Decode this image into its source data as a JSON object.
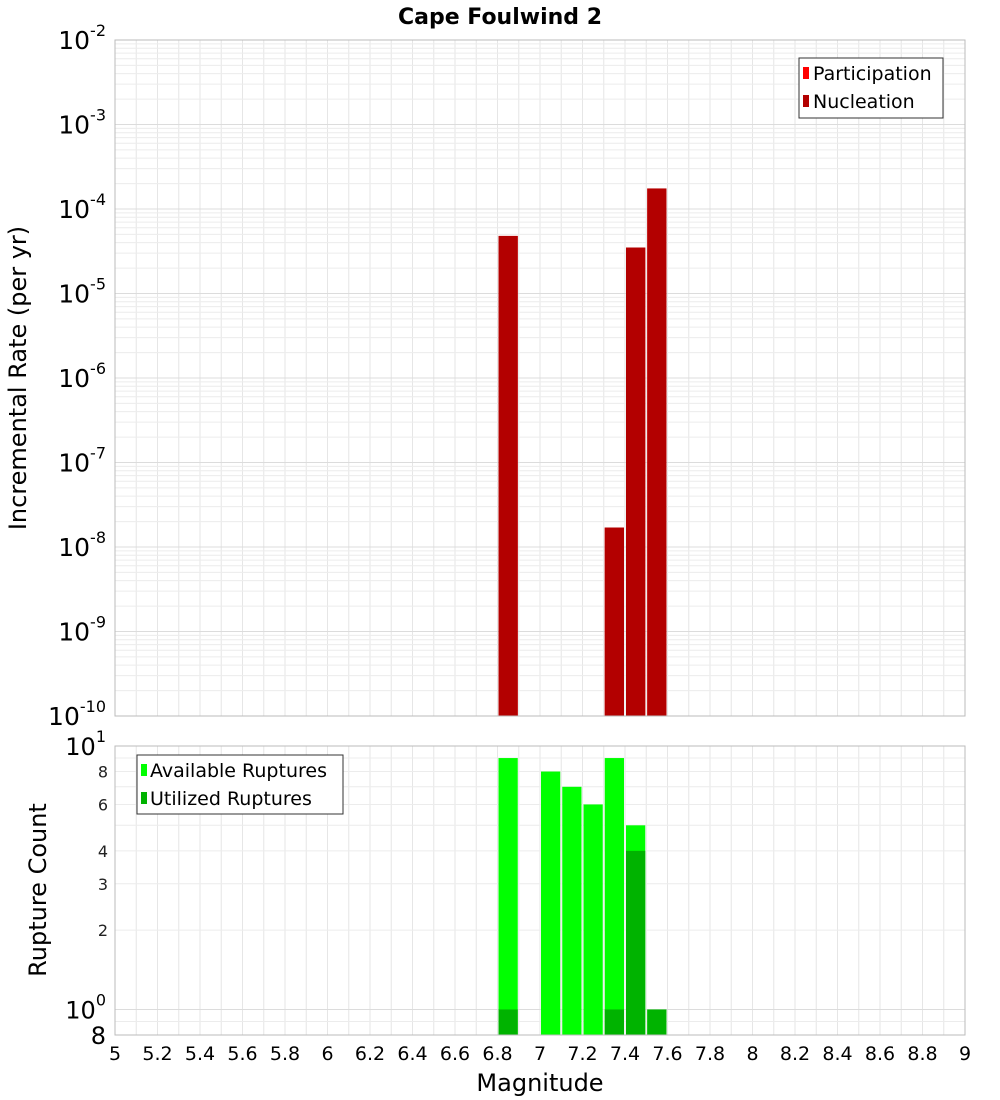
{
  "chart_data": {
    "title": "Cape Foulwind 2",
    "xlabel": "Magnitude",
    "xlim": [
      5,
      9
    ],
    "x_ticks": [
      "5",
      "5.2",
      "5.4",
      "5.6",
      "5.8",
      "6",
      "6.2",
      "6.4",
      "6.6",
      "6.8",
      "7",
      "7.2",
      "7.4",
      "7.6",
      "7.8",
      "8",
      "8.2",
      "8.4",
      "8.6",
      "8.8",
      "9"
    ],
    "bin_width": 0.1,
    "colors": {
      "participation": "#ff0000",
      "nucleation": "#b30000",
      "available": "#00ff00",
      "utilized": "#00b300",
      "grid": "#e6e6e6",
      "frame": "#bbbbbb"
    },
    "panels": [
      {
        "id": "rate",
        "type": "bar",
        "scale": "log",
        "ylabel": "Incremental Rate (per yr)",
        "ylim": [
          1e-10,
          0.01
        ],
        "y_ticks": [
          {
            "value": 0.01,
            "base": "10",
            "exp": "-2"
          },
          {
            "value": 0.001,
            "base": "10",
            "exp": "-3"
          },
          {
            "value": 0.0001,
            "base": "10",
            "exp": "-4"
          },
          {
            "value": 1e-05,
            "base": "10",
            "exp": "-5"
          },
          {
            "value": 1e-06,
            "base": "10",
            "exp": "-6"
          },
          {
            "value": 1e-07,
            "base": "10",
            "exp": "-7"
          },
          {
            "value": 1e-08,
            "base": "10",
            "exp": "-8"
          },
          {
            "value": 1e-09,
            "base": "10",
            "exp": "-9"
          },
          {
            "value": 1e-10,
            "base": "10",
            "exp": "-10"
          }
        ],
        "legend": [
          {
            "label": "Participation",
            "color_key": "participation"
          },
          {
            "label": "Nucleation",
            "color_key": "nucleation"
          }
        ],
        "series": [
          {
            "name": "Participation",
            "color_key": "participation",
            "x": [
              6.85,
              7.35,
              7.45,
              7.55
            ],
            "values": [
              4.8e-05,
              1.7e-08,
              3.5e-05,
              0.000175
            ]
          },
          {
            "name": "Nucleation",
            "color_key": "nucleation",
            "x": [
              6.85,
              7.35,
              7.45,
              7.55
            ],
            "values": [
              4.8e-05,
              1.7e-08,
              3.5e-05,
              0.000175
            ]
          }
        ]
      },
      {
        "id": "count",
        "type": "bar",
        "scale": "log",
        "ylabel": "Rupture Count",
        "ylim": [
          0.8,
          10
        ],
        "y_ticks": [
          {
            "value": 10,
            "base": "10",
            "exp": "1",
            "major": true
          },
          {
            "value": 8,
            "label": "8"
          },
          {
            "value": 6,
            "label": "6"
          },
          {
            "value": 4,
            "label": "4"
          },
          {
            "value": 3,
            "label": "3"
          },
          {
            "value": 2,
            "label": "2"
          },
          {
            "value": 1,
            "base": "10",
            "exp": "0",
            "major": true
          },
          {
            "value": 0.8,
            "label": "8",
            "major": true
          }
        ],
        "legend": [
          {
            "label": "Available Ruptures",
            "color_key": "available"
          },
          {
            "label": "Utilized Ruptures",
            "color_key": "utilized"
          }
        ],
        "series": [
          {
            "name": "Available Ruptures",
            "color_key": "available",
            "x": [
              6.85,
              7.05,
              7.15,
              7.25,
              7.35,
              7.45,
              7.55
            ],
            "values": [
              9,
              8,
              7,
              6,
              9,
              5,
              1
            ]
          },
          {
            "name": "Utilized Ruptures",
            "color_key": "utilized",
            "x": [
              6.85,
              7.35,
              7.45,
              7.55
            ],
            "values": [
              1,
              1,
              4,
              1
            ]
          }
        ]
      }
    ]
  }
}
